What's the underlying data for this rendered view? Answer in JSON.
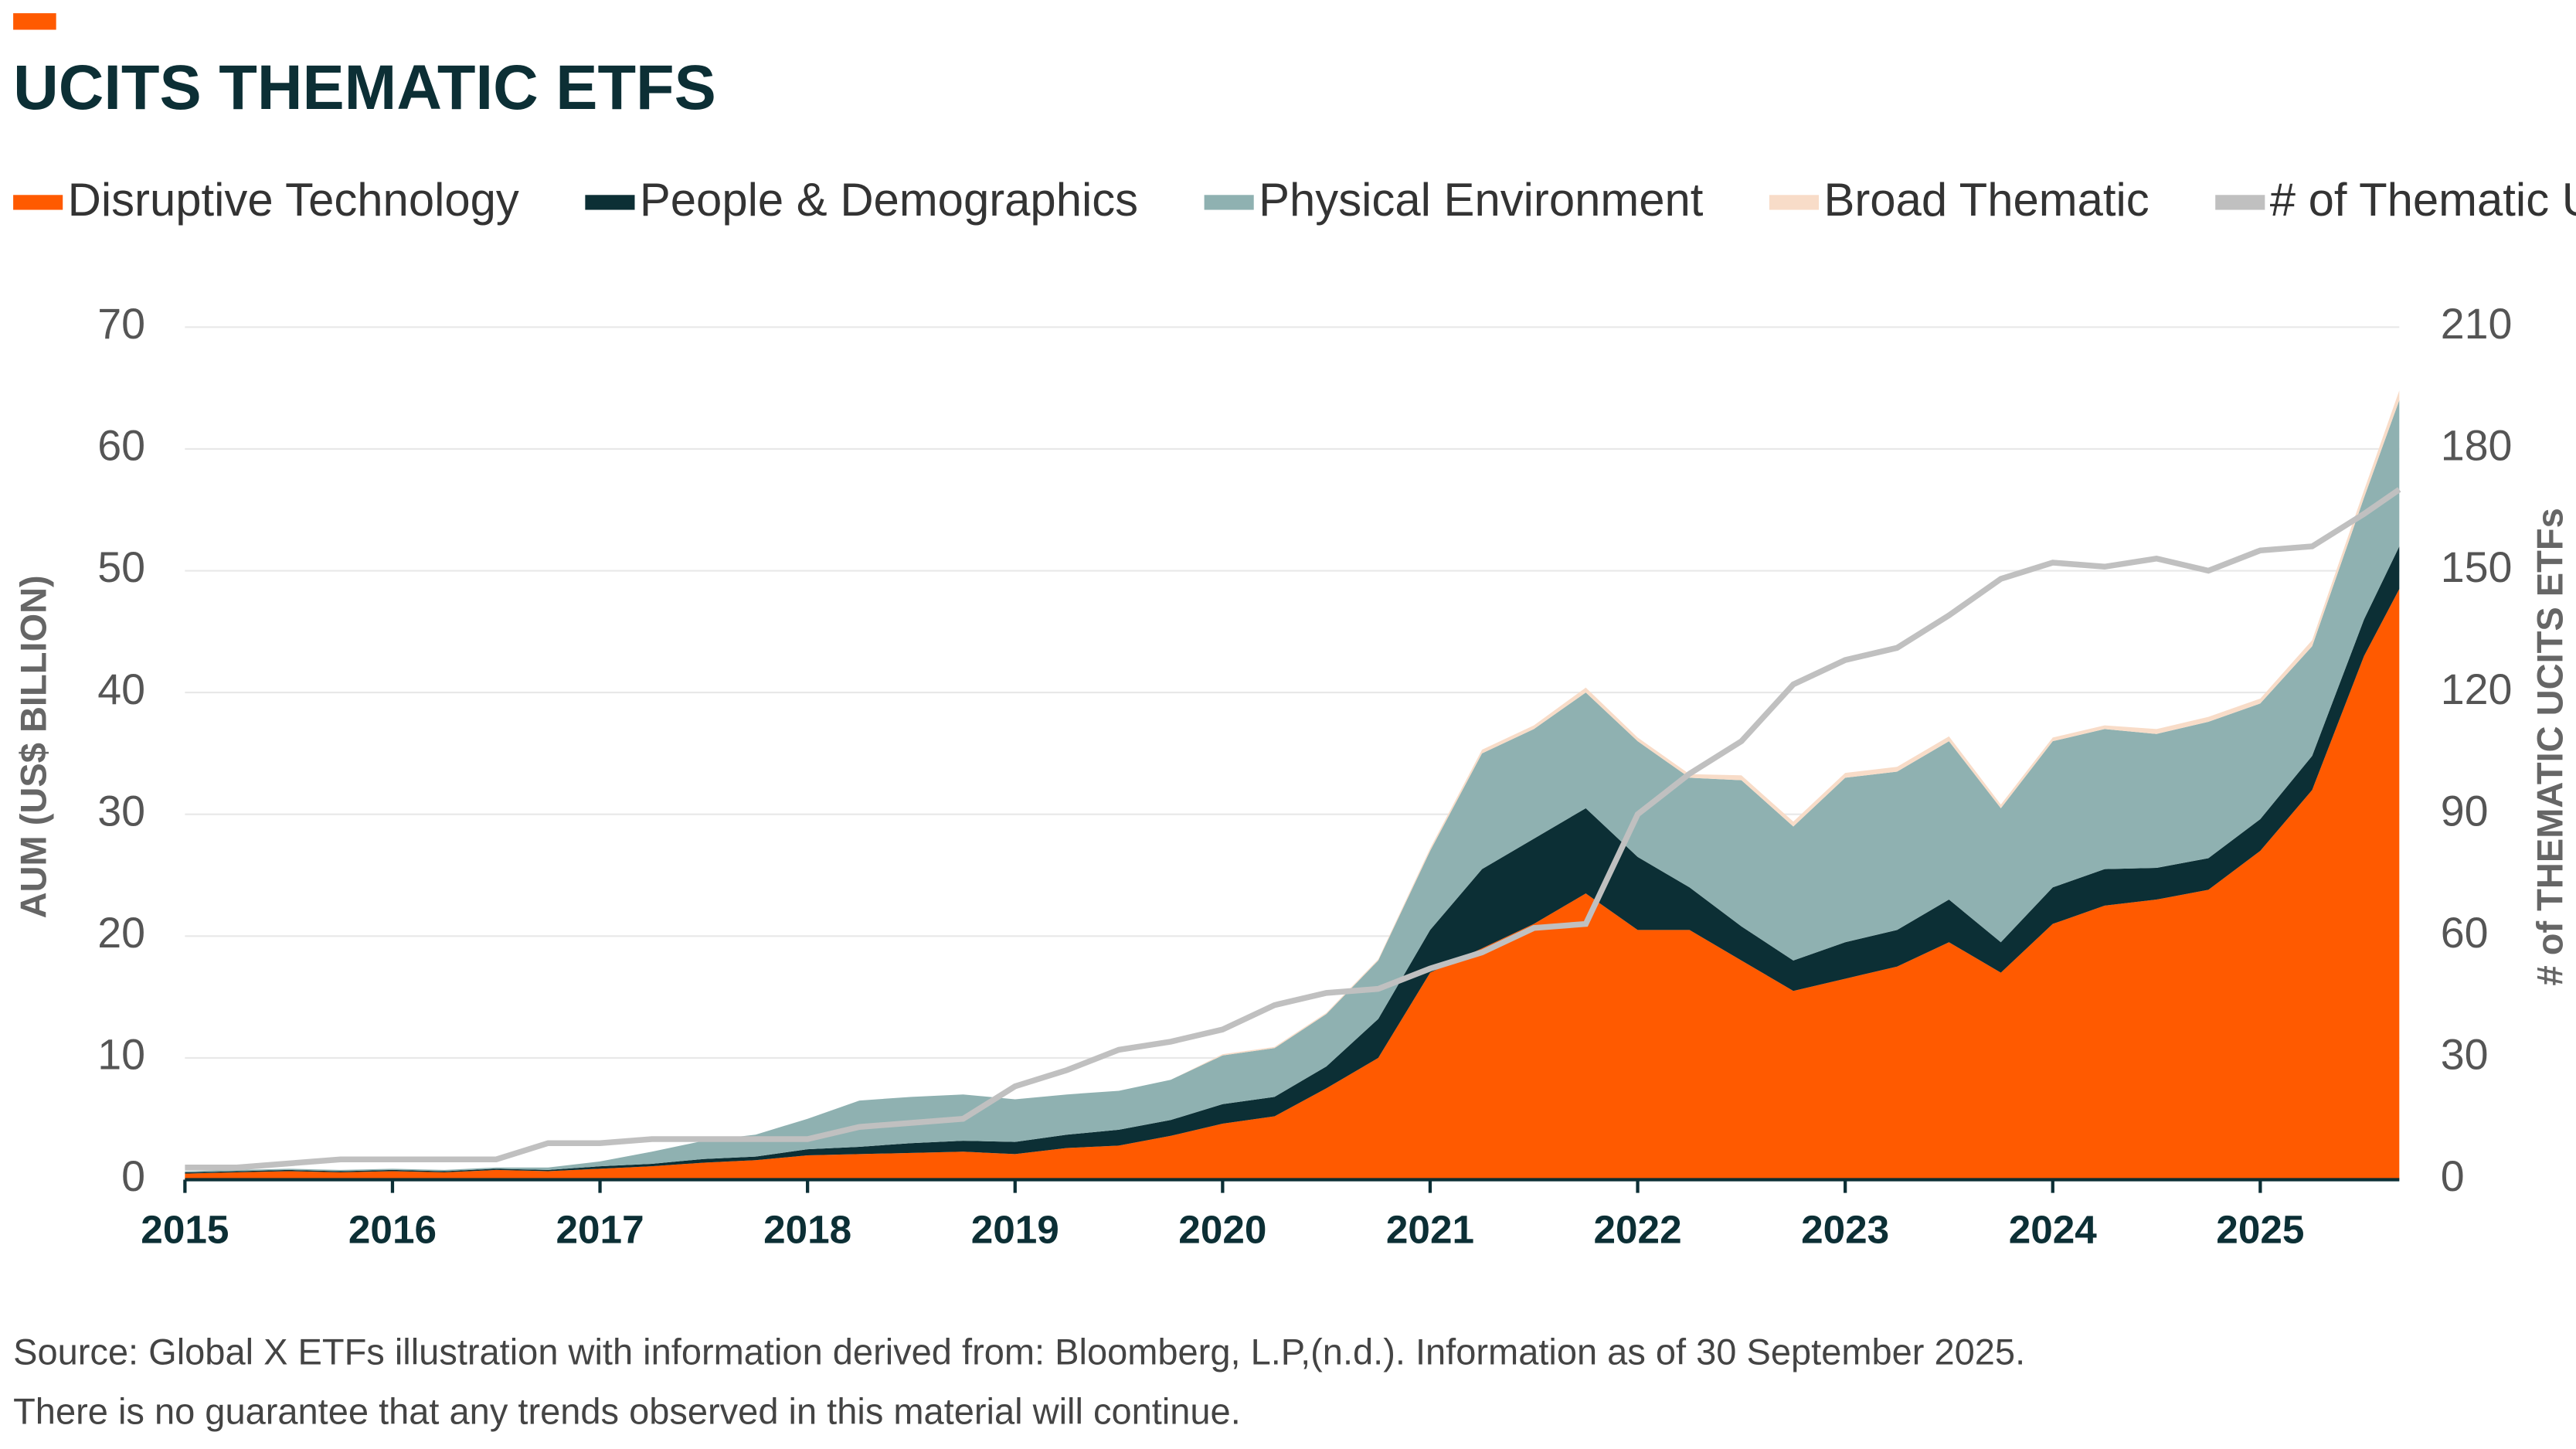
{
  "chart_data": {
    "type": "area",
    "stacked": true,
    "title": "UCITS THEMATIC ETFS",
    "ylabel": "AUM (US$ BILLION)",
    "y2label": "# of THEMATIC UCITS ETFs",
    "legend_position": "top",
    "grid": true,
    "xlim": [
      2015,
      2025.67
    ],
    "xticks": [
      2015,
      2016,
      2017,
      2018,
      2019,
      2020,
      2021,
      2022,
      2023,
      2024,
      2025
    ],
    "ylim": [
      0,
      70
    ],
    "yticks": [
      0,
      10,
      20,
      30,
      40,
      50,
      60,
      70
    ],
    "y2lim": [
      0,
      210
    ],
    "y2ticks": [
      0,
      30,
      60,
      90,
      120,
      150,
      180,
      210
    ],
    "x": [
      2015,
      2015.25,
      2015.5,
      2015.75,
      2016,
      2016.25,
      2016.5,
      2016.75,
      2017,
      2017.25,
      2017.5,
      2017.75,
      2018,
      2018.25,
      2018.5,
      2018.75,
      2019,
      2019.25,
      2019.5,
      2019.75,
      2020,
      2020.25,
      2020.5,
      2020.75,
      2021,
      2021.25,
      2021.5,
      2021.75,
      2022,
      2022.25,
      2022.5,
      2022.75,
      2023,
      2023.25,
      2023.5,
      2023.75,
      2024,
      2024.25,
      2024.5,
      2024.75,
      2025,
      2025.25,
      2025.5,
      2025.67
    ],
    "series": [
      {
        "name": "Disruptive Technology",
        "color": "#ff5a00",
        "values": [
          0.5,
          0.6,
          0.7,
          0.6,
          0.7,
          0.6,
          0.8,
          0.7,
          0.9,
          1.1,
          1.4,
          1.6,
          2.0,
          2.1,
          2.2,
          2.3,
          2.1,
          2.6,
          2.8,
          3.6,
          4.6,
          5.2,
          7.5,
          10,
          17,
          19,
          21,
          23.5,
          20.5,
          20.5,
          18,
          15.5,
          16.5,
          17.5,
          19.5,
          17,
          21,
          22.5,
          23,
          23.8,
          27,
          32,
          43,
          48.5
        ]
      },
      {
        "name": "People & Demographics",
        "color": "#0c2f35",
        "values": [
          0.1,
          0.1,
          0.1,
          0.1,
          0.1,
          0.1,
          0.1,
          0.1,
          0.2,
          0.2,
          0.3,
          0.3,
          0.5,
          0.6,
          0.8,
          0.9,
          1.0,
          1.1,
          1.3,
          1.3,
          1.6,
          1.6,
          1.8,
          3.2,
          3.5,
          6.5,
          7,
          7,
          6,
          3.5,
          2.8,
          2.5,
          3,
          3,
          3.5,
          2.5,
          3,
          3,
          2.6,
          2.6,
          2.6,
          2.8,
          3,
          3.5
        ]
      },
      {
        "name": "Physical Environment",
        "color": "#8fb1b1",
        "values": [
          0.1,
          0.1,
          0.1,
          0.1,
          0.1,
          0.1,
          0.1,
          0.2,
          0.4,
          1.0,
          1.5,
          1.8,
          2.5,
          3.8,
          3.8,
          3.8,
          3.5,
          3.3,
          3.2,
          3.3,
          4.0,
          4.0,
          4.3,
          4.8,
          6.5,
          9.5,
          9,
          9.5,
          9.5,
          9,
          12,
          11,
          13.5,
          13,
          13,
          11,
          12,
          11.5,
          11,
          11.2,
          9.5,
          9,
          10,
          12
        ]
      },
      {
        "name": "Broad Thematic",
        "color": "#f8dcc8",
        "values": [
          0,
          0,
          0,
          0,
          0,
          0,
          0,
          0,
          0,
          0,
          0,
          0,
          0,
          0,
          0,
          0,
          0,
          0,
          0,
          0,
          0.1,
          0.1,
          0.1,
          0.1,
          0.2,
          0.3,
          0.3,
          0.4,
          0.3,
          0.3,
          0.4,
          0.4,
          0.4,
          0.4,
          0.4,
          0.3,
          0.3,
          0.3,
          0.4,
          0.4,
          0.4,
          0.5,
          0.6,
          0.8
        ]
      },
      {
        "name": "# of Thematic UCITS",
        "color": "#c0c0c0",
        "axis": "y2",
        "type": "line",
        "values": [
          3,
          3,
          4,
          5,
          5,
          5,
          5,
          9,
          9,
          10,
          10,
          10,
          10,
          13,
          14,
          15,
          23,
          27,
          32,
          34,
          37,
          43,
          46,
          47,
          52,
          56,
          62,
          63,
          90,
          100,
          108,
          122,
          128,
          131,
          139,
          148,
          152,
          151,
          153,
          150,
          155,
          156,
          164,
          170
        ]
      }
    ],
    "footnotes": [
      "Source: Global X ETFs illustration with information derived from: Bloomberg, L.P,(n.d.). Information as of 30 September 2025.",
      "There is no guarantee that any trends observed in this material will continue."
    ]
  }
}
